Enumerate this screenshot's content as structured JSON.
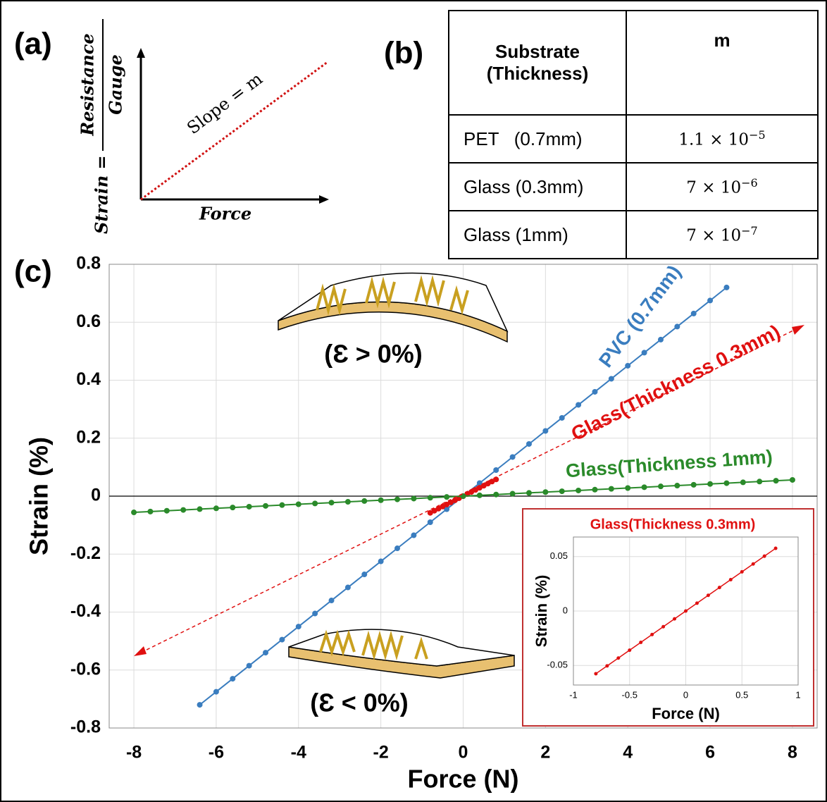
{
  "panel_a": {
    "label": "(a)",
    "y_label": "Strain =",
    "y_numerator": "Resistance",
    "y_denominator": "Gauge",
    "x_label": "Force",
    "slope_label": "Slope = m"
  },
  "panel_b": {
    "label": "(b)",
    "header": [
      "Substrate (Thickness)",
      "m"
    ],
    "rows": [
      {
        "substrate": "PET   (0.7mm)",
        "m_base": "1.1 × 10",
        "m_exp": "−5"
      },
      {
        "substrate": "Glass (0.3mm)",
        "m_base": "7 × 10",
        "m_exp": "−6"
      },
      {
        "substrate": "Glass (1mm)",
        "m_base": "7 × 10",
        "m_exp": "−7"
      }
    ]
  },
  "chart_data": [
    {
      "type": "line",
      "label": "(c)",
      "xlabel": "Force (N)",
      "ylabel": "Strain (%)",
      "xlim": [
        -8.6,
        8.6
      ],
      "ylim": [
        -0.8,
        0.8
      ],
      "xticks": [
        -8,
        -6,
        -4,
        -2,
        0,
        2,
        4,
        6,
        8
      ],
      "yticks": [
        -0.8,
        -0.6,
        -0.4,
        -0.2,
        0,
        0.2,
        0.4,
        0.6,
        0.8
      ],
      "grid": true,
      "annotations": [
        "(Ɛ > 0%)",
        "(Ɛ < 0%)"
      ],
      "series": [
        {
          "name": "PVC (0.7mm)",
          "color": "#3a7dbf",
          "x": [
            -6.4,
            -6,
            -5.6,
            -5.2,
            -4.8,
            -4.4,
            -4,
            -3.6,
            -3.2,
            -2.8,
            -2.4,
            -2,
            -1.6,
            -1.2,
            -0.8,
            -0.4,
            0,
            0.4,
            0.8,
            1.2,
            1.6,
            2,
            2.4,
            2.8,
            3.2,
            3.6,
            4,
            4.4,
            4.8,
            5.2,
            5.6,
            6,
            6.4
          ],
          "values": [
            -0.72,
            -0.675,
            -0.63,
            -0.585,
            -0.54,
            -0.495,
            -0.45,
            -0.405,
            -0.36,
            -0.315,
            -0.27,
            -0.225,
            -0.18,
            -0.135,
            -0.09,
            -0.045,
            0,
            0.045,
            0.09,
            0.135,
            0.18,
            0.225,
            0.27,
            0.315,
            0.36,
            0.405,
            0.45,
            0.495,
            0.54,
            0.585,
            0.63,
            0.675,
            0.72
          ]
        },
        {
          "name": "Glass(Thickness 0.3mm)",
          "color": "#e01010",
          "x": [
            -0.8,
            -0.7,
            -0.6,
            -0.5,
            -0.4,
            -0.3,
            -0.2,
            -0.1,
            0,
            0.1,
            0.2,
            0.3,
            0.4,
            0.5,
            0.6,
            0.7,
            0.8
          ],
          "values": [
            -0.0576,
            -0.0504,
            -0.0432,
            -0.036,
            -0.0288,
            -0.0216,
            -0.0144,
            -0.0072,
            0,
            0.0072,
            0.0144,
            0.0216,
            0.0288,
            0.036,
            0.0432,
            0.0504,
            0.0576
          ]
        },
        {
          "name": "Glass(Thickness 1mm)",
          "color": "#2a8a2a",
          "x": [
            -8,
            -7.6,
            -7.2,
            -6.8,
            -6.4,
            -6,
            -5.6,
            -5.2,
            -4.8,
            -4.4,
            -4,
            -3.6,
            -3.2,
            -2.8,
            -2.4,
            -2,
            -1.6,
            -1.2,
            -0.8,
            -0.4,
            0,
            0.4,
            0.8,
            1.2,
            1.6,
            2,
            2.4,
            2.8,
            3.2,
            3.6,
            4,
            4.4,
            4.8,
            5.2,
            5.6,
            6,
            6.4,
            6.8,
            7.2,
            7.6,
            8
          ],
          "values": [
            -0.056,
            -0.0532,
            -0.0504,
            -0.0476,
            -0.0448,
            -0.042,
            -0.0392,
            -0.0364,
            -0.0336,
            -0.0308,
            -0.028,
            -0.0252,
            -0.0224,
            -0.0196,
            -0.0168,
            -0.014,
            -0.0112,
            -0.0084,
            -0.0056,
            -0.0028,
            0,
            0.0028,
            0.0056,
            0.0084,
            0.0112,
            0.014,
            0.0168,
            0.0196,
            0.0224,
            0.0252,
            0.028,
            0.0308,
            0.0336,
            0.0364,
            0.0392,
            0.042,
            0.0448,
            0.0476,
            0.0504,
            0.0532,
            0.056
          ]
        }
      ]
    },
    {
      "type": "line",
      "title": "Glass(Thickness 0.3mm)",
      "xlabel": "Force (N)",
      "ylabel": "Strain (%)",
      "xlim": [
        -1,
        1
      ],
      "ylim": [
        -0.068,
        0.068
      ],
      "xticks": [
        -1,
        -0.5,
        0,
        0.5,
        1
      ],
      "yticks": [
        -0.05,
        0,
        0.05
      ],
      "grid": true,
      "series": [
        {
          "name": "Glass(Thickness 0.3mm)",
          "color": "#e01010",
          "x": [
            -0.8,
            -0.7,
            -0.6,
            -0.5,
            -0.4,
            -0.3,
            -0.2,
            -0.1,
            0,
            0.1,
            0.2,
            0.3,
            0.4,
            0.5,
            0.6,
            0.7,
            0.8
          ],
          "values": [
            -0.0576,
            -0.0504,
            -0.0432,
            -0.036,
            -0.0288,
            -0.0216,
            -0.0144,
            -0.0072,
            0,
            0.0072,
            0.0144,
            0.0216,
            0.0288,
            0.036,
            0.0432,
            0.0504,
            0.0576
          ]
        }
      ]
    }
  ]
}
